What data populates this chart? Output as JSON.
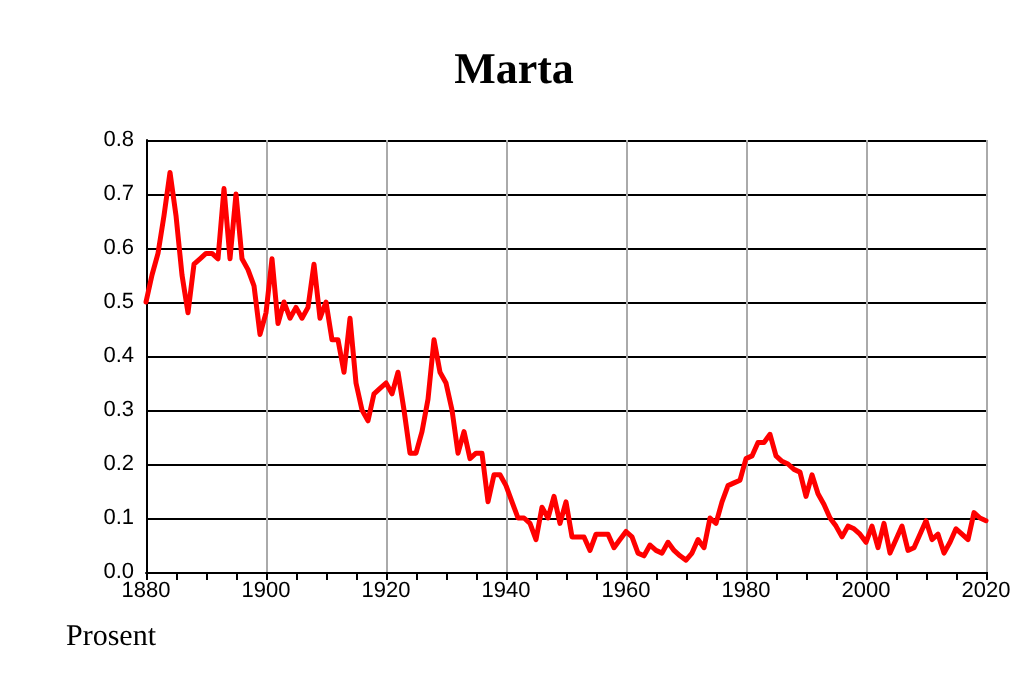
{
  "chart_data": {
    "type": "line",
    "title": "Marta",
    "ylabel": "Prosent",
    "x": [
      1880,
      1881,
      1882,
      1883,
      1884,
      1885,
      1886,
      1887,
      1888,
      1889,
      1890,
      1891,
      1892,
      1893,
      1894,
      1895,
      1896,
      1897,
      1898,
      1899,
      1900,
      1901,
      1902,
      1903,
      1904,
      1905,
      1906,
      1907,
      1908,
      1909,
      1910,
      1911,
      1912,
      1913,
      1914,
      1915,
      1916,
      1917,
      1918,
      1919,
      1920,
      1921,
      1922,
      1923,
      1924,
      1925,
      1926,
      1927,
      1928,
      1929,
      1930,
      1931,
      1932,
      1933,
      1934,
      1935,
      1936,
      1937,
      1938,
      1939,
      1940,
      1941,
      1942,
      1943,
      1944,
      1945,
      1946,
      1947,
      1948,
      1949,
      1950,
      1951,
      1952,
      1953,
      1954,
      1955,
      1956,
      1957,
      1958,
      1959,
      1960,
      1961,
      1962,
      1963,
      1964,
      1965,
      1966,
      1967,
      1968,
      1969,
      1970,
      1971,
      1972,
      1973,
      1974,
      1975,
      1976,
      1977,
      1978,
      1979,
      1980,
      1981,
      1982,
      1983,
      1984,
      1985,
      1986,
      1987,
      1988,
      1989,
      1990,
      1991,
      1992,
      1993,
      1994,
      1995,
      1996,
      1997,
      1998,
      1999,
      2000,
      2001,
      2002,
      2003,
      2004,
      2005,
      2006,
      2007,
      2008,
      2009,
      2010,
      2011,
      2012,
      2013,
      2014,
      2015,
      2016,
      2017,
      2018,
      2019,
      2020
    ],
    "series": [
      {
        "color": "#ff0000",
        "values": [
          0.5,
          0.55,
          0.59,
          0.66,
          0.74,
          0.66,
          0.55,
          0.48,
          0.57,
          0.58,
          0.59,
          0.59,
          0.58,
          0.71,
          0.58,
          0.7,
          0.58,
          0.56,
          0.53,
          0.44,
          0.48,
          0.58,
          0.46,
          0.5,
          0.47,
          0.49,
          0.47,
          0.49,
          0.57,
          0.47,
          0.5,
          0.43,
          0.43,
          0.37,
          0.47,
          0.35,
          0.3,
          0.28,
          0.33,
          0.34,
          0.35,
          0.33,
          0.37,
          0.3,
          0.22,
          0.22,
          0.26,
          0.32,
          0.43,
          0.37,
          0.35,
          0.3,
          0.22,
          0.26,
          0.21,
          0.22,
          0.22,
          0.13,
          0.18,
          0.18,
          0.16,
          0.13,
          0.1,
          0.1,
          0.09,
          0.06,
          0.12,
          0.1,
          0.14,
          0.09,
          0.13,
          0.065,
          0.065,
          0.065,
          0.04,
          0.07,
          0.07,
          0.07,
          0.045,
          0.06,
          0.075,
          0.065,
          0.035,
          0.03,
          0.05,
          0.04,
          0.035,
          0.055,
          0.04,
          0.03,
          0.022,
          0.035,
          0.06,
          0.045,
          0.1,
          0.09,
          0.13,
          0.16,
          0.165,
          0.17,
          0.21,
          0.215,
          0.24,
          0.24,
          0.255,
          0.215,
          0.205,
          0.2,
          0.19,
          0.185,
          0.14,
          0.18,
          0.145,
          0.125,
          0.1,
          0.085,
          0.065,
          0.085,
          0.08,
          0.07,
          0.055,
          0.085,
          0.045,
          0.09,
          0.035,
          0.06,
          0.085,
          0.04,
          0.045,
          0.07,
          0.095,
          0.06,
          0.07,
          0.035,
          0.055,
          0.08,
          0.07,
          0.06,
          0.11,
          0.1,
          0.095
        ]
      }
    ],
    "xlim": [
      1880,
      2020
    ],
    "xticks": [
      1880,
      {
        "value": 1885,
        "label": null
      },
      {
        "value": 1890,
        "label": null
      },
      {
        "value": 1895,
        "label": null
      },
      1900,
      {
        "value": 1905,
        "label": null
      },
      {
        "value": 1910,
        "label": null
      },
      {
        "value": 1915,
        "label": null
      },
      1920,
      {
        "value": 1925,
        "label": null
      },
      {
        "value": 1930,
        "label": null
      },
      {
        "value": 1935,
        "label": null
      },
      1940,
      {
        "value": 1945,
        "label": null
      },
      {
        "value": 1950,
        "label": null
      },
      {
        "value": 1955,
        "label": null
      },
      1960,
      {
        "value": 1965,
        "label": null
      },
      {
        "value": 1970,
        "label": null
      },
      {
        "value": 1975,
        "label": null
      },
      1980,
      {
        "value": 1985,
        "label": null
      },
      {
        "value": 1990,
        "label": null
      },
      {
        "value": 1995,
        "label": null
      },
      2000,
      {
        "value": 2005,
        "label": null
      },
      {
        "value": 2010,
        "label": null
      },
      {
        "value": 2015,
        "label": null
      },
      2020
    ],
    "ylim": [
      0,
      0.8
    ],
    "yticks": [
      {
        "value": 0,
        "label": "0.0"
      },
      {
        "value": 0.1,
        "label": "0.1"
      },
      {
        "value": 0.2,
        "label": "0.2"
      },
      {
        "value": 0.3,
        "label": "0.3"
      },
      {
        "value": 0.4,
        "label": "0.4"
      },
      {
        "value": 0.5,
        "label": "0.5"
      },
      {
        "value": 0.6,
        "label": "0.6"
      },
      {
        "value": 0.7,
        "label": "0.7"
      },
      {
        "value": 0.8,
        "label": "0.8"
      }
    ],
    "grid": true,
    "marker": "none",
    "line_style": "solid"
  }
}
